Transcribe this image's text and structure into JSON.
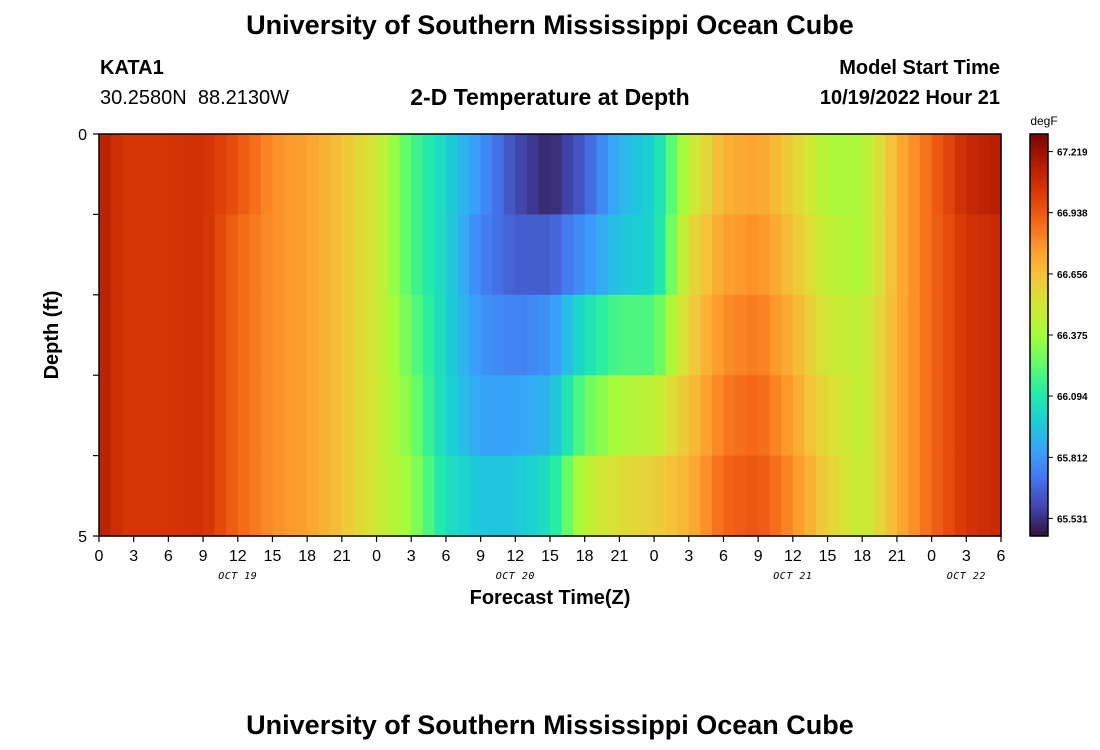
{
  "header": {
    "title": "University of Southern Mississippi Ocean Cube",
    "station_id": "KATA1",
    "coords": "30.2580N  88.2130W",
    "subtitle": "2-D Temperature at Depth",
    "model_start_label": "Model Start Time",
    "model_start_value": "10/19/2022 Hour 21"
  },
  "footer": {
    "title": "University of Southern Mississippi Ocean Cube"
  },
  "chart_data": {
    "type": "heatmap",
    "title": "2-D Temperature at Depth",
    "xlabel": "Forecast Time(Z)",
    "ylabel": "Depth (ft)",
    "colorbar_unit": "degF",
    "x_hours_from_oct19_00": [
      0,
      78
    ],
    "x_ticks": [
      "0",
      "3",
      "6",
      "9",
      "12",
      "15",
      "18",
      "21",
      "0",
      "3",
      "6",
      "9",
      "12",
      "15",
      "18",
      "21",
      "0",
      "3",
      "6",
      "9",
      "12",
      "15",
      "18",
      "21",
      "0",
      "3",
      "6"
    ],
    "date_labels": [
      {
        "text": "OCT 19",
        "hour": 12
      },
      {
        "text": "OCT 20",
        "hour": 36
      },
      {
        "text": "OCT 21",
        "hour": 60
      },
      {
        "text": "OCT 22",
        "hour": 75
      }
    ],
    "y_tick_labels": [
      "0",
      "5"
    ],
    "ylim": [
      0,
      5
    ],
    "layer_depths_ft": [
      "0-1",
      "1-2",
      "2-3",
      "3-4",
      "4-5"
    ],
    "colorbar_ticks": [
      "67.219",
      "66.938",
      "66.656",
      "66.375",
      "66.094",
      "65.812",
      "65.531"
    ],
    "value_range": [
      65.45,
      67.3
    ],
    "colormap": [
      "#30123b",
      "#4145ab",
      "#4675ed",
      "#39a2fc",
      "#1bcfd4",
      "#24eca6",
      "#61fc6c",
      "#a4fc3b",
      "#d1e834",
      "#f3c63a",
      "#fe9b2d",
      "#f36315",
      "#d93806",
      "#b11901",
      "#7a0402"
    ],
    "time_keys_hours": [
      0,
      2,
      6,
      9,
      12,
      15,
      18,
      21,
      24,
      27,
      30,
      33,
      36,
      39,
      42,
      45,
      48,
      51,
      54,
      57,
      60,
      63,
      66,
      69,
      72,
      75,
      78
    ],
    "layers": [
      [
        67.15,
        67.05,
        67.05,
        67.07,
        66.95,
        66.8,
        66.75,
        66.65,
        66.5,
        66.2,
        66.0,
        65.8,
        65.6,
        65.5,
        65.65,
        65.9,
        66.0,
        66.45,
        66.7,
        66.75,
        66.6,
        66.4,
        66.4,
        66.7,
        66.9,
        67.1,
        67.15
      ],
      [
        67.15,
        67.05,
        67.05,
        67.07,
        66.9,
        66.8,
        66.75,
        66.65,
        66.5,
        66.2,
        66.0,
        65.75,
        65.65,
        65.65,
        65.8,
        65.95,
        66.0,
        66.55,
        66.75,
        66.8,
        66.65,
        66.45,
        66.4,
        66.7,
        66.9,
        67.05,
        67.1
      ],
      [
        67.15,
        67.05,
        67.05,
        67.07,
        66.9,
        66.8,
        66.75,
        66.65,
        66.5,
        66.25,
        66.0,
        65.8,
        65.75,
        65.8,
        66.05,
        66.2,
        66.2,
        66.6,
        66.8,
        66.85,
        66.7,
        66.5,
        66.45,
        66.7,
        66.9,
        67.05,
        67.1
      ],
      [
        67.15,
        67.05,
        67.05,
        67.07,
        66.9,
        66.8,
        66.75,
        66.65,
        66.5,
        66.3,
        66.0,
        65.85,
        65.85,
        65.9,
        66.25,
        66.4,
        66.45,
        66.65,
        66.85,
        66.9,
        66.75,
        66.55,
        66.45,
        66.7,
        66.9,
        67.05,
        67.1
      ],
      [
        67.15,
        67.05,
        67.05,
        67.07,
        66.9,
        66.8,
        66.75,
        66.65,
        66.5,
        66.35,
        66.05,
        65.95,
        65.95,
        66.05,
        66.45,
        66.55,
        66.6,
        66.7,
        66.9,
        66.95,
        66.8,
        66.6,
        66.45,
        66.7,
        66.9,
        67.05,
        67.1
      ]
    ]
  }
}
